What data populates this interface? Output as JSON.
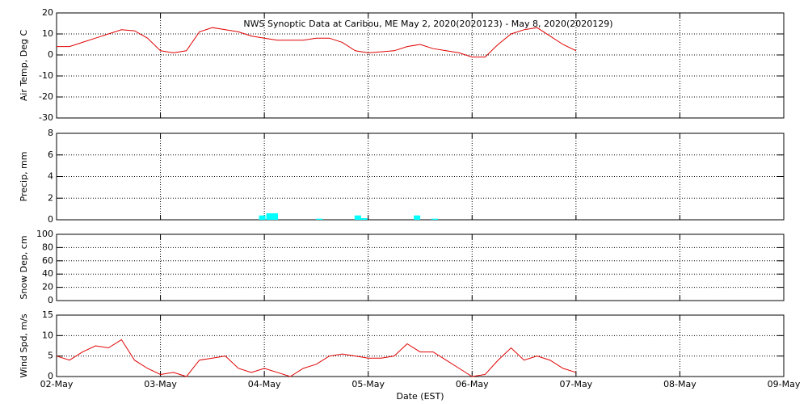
{
  "chart_data": [
    {
      "type": "line",
      "title": "NWS Synoptic Data at Caribou, ME   May  2, 2020(2020123) - May  8, 2020(2020129)",
      "y_label": "Air Temp, Deg C",
      "xlim": [
        0,
        7
      ],
      "xticks": [
        0,
        1,
        2,
        3,
        4,
        5,
        6,
        7
      ],
      "ylim": [
        -30,
        20
      ],
      "yticks": [
        -30,
        -20,
        -10,
        0,
        10,
        20
      ],
      "grid": true,
      "series": [
        {
          "color": "#e00000",
          "x": [
            0,
            0.125,
            0.25,
            0.375,
            0.5,
            0.625,
            0.75,
            0.875,
            1,
            1.125,
            1.25,
            1.375,
            1.5,
            1.625,
            1.75,
            1.875,
            2,
            2.125,
            2.25,
            2.375,
            2.5,
            2.625,
            2.75,
            2.875,
            3,
            3.125,
            3.25,
            3.375,
            3.5,
            3.625,
            3.75,
            3.875,
            4,
            4.125,
            4.25,
            4.375,
            4.5,
            4.625,
            4.75,
            4.875,
            5
          ],
          "values": [
            4,
            4,
            6,
            8,
            10,
            12,
            11.5,
            8,
            2,
            1,
            2,
            11,
            13,
            12,
            11,
            9,
            8,
            7,
            7,
            7,
            8,
            8,
            6,
            2,
            1,
            1.5,
            2,
            4,
            5,
            3,
            2,
            1,
            -1,
            -1,
            5,
            10,
            12,
            13,
            9,
            5,
            2
          ]
        }
      ]
    },
    {
      "type": "bar",
      "y_label": "Precip, mm",
      "xlim": [
        0,
        7
      ],
      "xticks": [
        0,
        1,
        2,
        3,
        4,
        5,
        6,
        7
      ],
      "ylim": [
        0,
        8
      ],
      "yticks": [
        0,
        2,
        4,
        6,
        8
      ],
      "grid": true,
      "series": [
        {
          "color": "#00ffff",
          "x": [
            1.98,
            2.05,
            2.1,
            2.53,
            2.9,
            2.96,
            3.47,
            3.64
          ],
          "values": [
            0.4,
            0.6,
            0.6,
            0.1,
            0.4,
            0.15,
            0.4,
            0.1
          ]
        }
      ]
    },
    {
      "type": "line",
      "y_label": "Snow Dep, cm",
      "xlim": [
        0,
        7
      ],
      "xticks": [
        0,
        1,
        2,
        3,
        4,
        5,
        6,
        7
      ],
      "ylim": [
        0,
        100
      ],
      "yticks": [
        0,
        20,
        40,
        60,
        80,
        100
      ],
      "grid": true
    },
    {
      "type": "line",
      "y_label": "Wind Spd, m/s",
      "x_label": "Date (EST)",
      "xlim": [
        0,
        7
      ],
      "xticks": [
        {
          "value": 0,
          "label": "02-May"
        },
        {
          "value": 1,
          "label": "03-May"
        },
        {
          "value": 2,
          "label": "04-May"
        },
        {
          "value": 3,
          "label": "05-May"
        },
        {
          "value": 4,
          "label": "06-May"
        },
        {
          "value": 5,
          "label": "07-May"
        },
        {
          "value": 6,
          "label": "08-May"
        },
        {
          "value": 7,
          "label": "09-May"
        }
      ],
      "ylim": [
        0,
        15
      ],
      "yticks": [
        0,
        5,
        10,
        15
      ],
      "grid": true,
      "series": [
        {
          "color": "#e00000",
          "x": [
            0,
            0.125,
            0.25,
            0.375,
            0.5,
            0.625,
            0.75,
            0.875,
            1,
            1.125,
            1.25,
            1.375,
            1.5,
            1.625,
            1.75,
            1.875,
            2,
            2.125,
            2.25,
            2.375,
            2.5,
            2.625,
            2.75,
            2.875,
            3,
            3.125,
            3.25,
            3.375,
            3.5,
            3.625,
            3.75,
            3.875,
            4,
            4.125,
            4.25,
            4.375,
            4.5,
            4.625,
            4.75,
            4.875,
            5
          ],
          "values": [
            5,
            4,
            6,
            7.5,
            7,
            9,
            4,
            2,
            0.5,
            1,
            0,
            4,
            4.5,
            5,
            2,
            1,
            2,
            1,
            0,
            2,
            3,
            5,
            5.5,
            5,
            4.5,
            4.5,
            5,
            8,
            6,
            6,
            4,
            2,
            0,
            0.5,
            4,
            7,
            4,
            5,
            4,
            2,
            1
          ]
        }
      ]
    }
  ]
}
